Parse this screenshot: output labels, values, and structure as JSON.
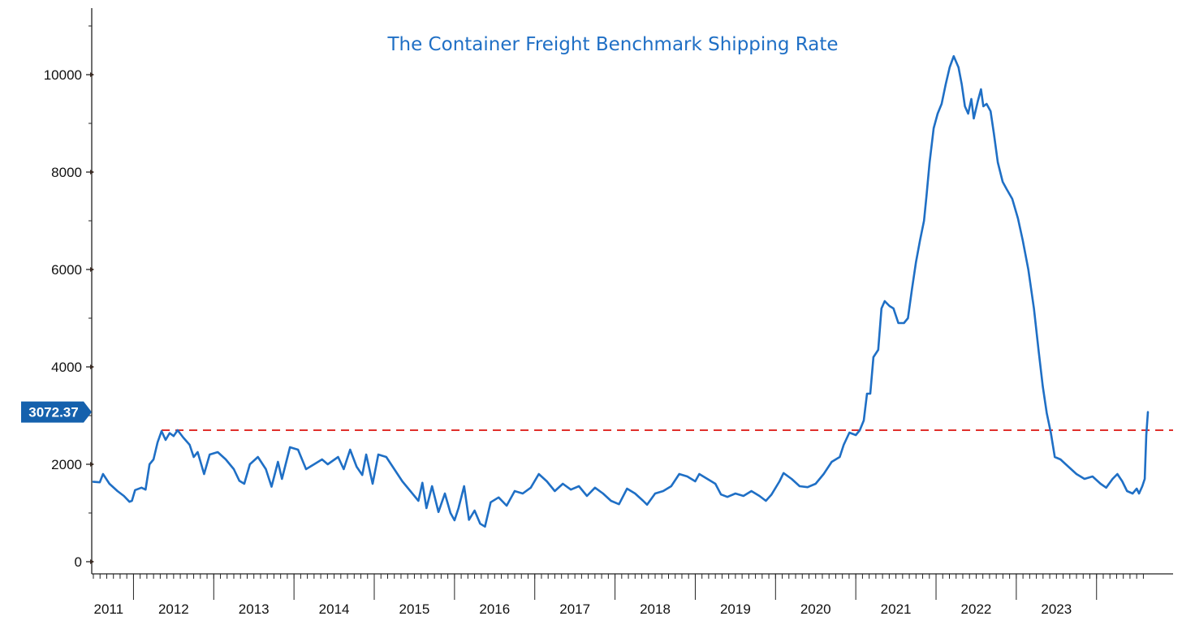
{
  "chart_data": {
    "type": "line",
    "title": "The Container Freight Benchmark Shipping Rate",
    "xlabel": "",
    "ylabel": "",
    "ylim": [
      0,
      11000
    ],
    "xlim": [
      2011.0,
      2024.15
    ],
    "y_ticks": [
      0,
      2000,
      4000,
      6000,
      8000,
      10000
    ],
    "y_tick_labels": [
      "0",
      "2000",
      "4000",
      "6000",
      "8000",
      "10000"
    ],
    "x_tick_labels": [
      "2011",
      "2012",
      "2013",
      "2014",
      "2015",
      "2016",
      "2017",
      "2018",
      "2019",
      "2020",
      "2021",
      "2022",
      "2023"
    ],
    "x_label_centers": [
      2011.19,
      2012.0,
      2013.0,
      2014.0,
      2015.0,
      2016.0,
      2017.0,
      2018.0,
      2019.0,
      2020.0,
      2021.0,
      2022.0,
      2023.0
    ],
    "year_boundaries": [
      2011.5,
      2012.5,
      2013.5,
      2014.5,
      2015.5,
      2016.5,
      2017.5,
      2018.5,
      2019.5,
      2020.5,
      2021.5,
      2022.5,
      2023.5
    ],
    "last_value_label": "3072.37",
    "reference_line": {
      "value": 2700,
      "start_x": 2011.85,
      "style": "dashed"
    },
    "grid": false,
    "colors": {
      "line": "#1f6fc5",
      "title": "#1f6fc5",
      "reference": "#e0302c",
      "badge": "#1561ad",
      "axis": "#222222"
    },
    "series": [
      {
        "name": "",
        "points": [
          [
            2011.0,
            1640
          ],
          [
            2011.08,
            1630
          ],
          [
            2011.12,
            1800
          ],
          [
            2011.2,
            1600
          ],
          [
            2011.3,
            1450
          ],
          [
            2011.38,
            1350
          ],
          [
            2011.45,
            1230
          ],
          [
            2011.48,
            1250
          ],
          [
            2011.52,
            1470
          ],
          [
            2011.6,
            1520
          ],
          [
            2011.65,
            1480
          ],
          [
            2011.7,
            2000
          ],
          [
            2011.75,
            2100
          ],
          [
            2011.8,
            2450
          ],
          [
            2011.85,
            2680
          ],
          [
            2011.9,
            2500
          ],
          [
            2011.95,
            2640
          ],
          [
            2012.0,
            2580
          ],
          [
            2012.05,
            2700
          ],
          [
            2012.12,
            2550
          ],
          [
            2012.2,
            2400
          ],
          [
            2012.25,
            2150
          ],
          [
            2012.3,
            2250
          ],
          [
            2012.38,
            1800
          ],
          [
            2012.45,
            2200
          ],
          [
            2012.55,
            2250
          ],
          [
            2012.65,
            2100
          ],
          [
            2012.75,
            1900
          ],
          [
            2012.82,
            1660
          ],
          [
            2012.88,
            1600
          ],
          [
            2012.95,
            2000
          ],
          [
            2013.05,
            2150
          ],
          [
            2013.15,
            1900
          ],
          [
            2013.22,
            1540
          ],
          [
            2013.3,
            2050
          ],
          [
            2013.35,
            1700
          ],
          [
            2013.45,
            2350
          ],
          [
            2013.55,
            2300
          ],
          [
            2013.65,
            1900
          ],
          [
            2013.75,
            2000
          ],
          [
            2013.85,
            2100
          ],
          [
            2013.92,
            2000
          ],
          [
            2014.05,
            2150
          ],
          [
            2014.12,
            1900
          ],
          [
            2014.2,
            2300
          ],
          [
            2014.28,
            1950
          ],
          [
            2014.35,
            1780
          ],
          [
            2014.4,
            2200
          ],
          [
            2014.48,
            1600
          ],
          [
            2014.55,
            2200
          ],
          [
            2014.65,
            2150
          ],
          [
            2014.75,
            1900
          ],
          [
            2014.85,
            1650
          ],
          [
            2014.95,
            1450
          ],
          [
            2015.05,
            1250
          ],
          [
            2015.1,
            1620
          ],
          [
            2015.15,
            1100
          ],
          [
            2015.22,
            1550
          ],
          [
            2015.3,
            1020
          ],
          [
            2015.38,
            1400
          ],
          [
            2015.45,
            1000
          ],
          [
            2015.5,
            850
          ],
          [
            2015.55,
            1100
          ],
          [
            2015.62,
            1550
          ],
          [
            2015.68,
            860
          ],
          [
            2015.75,
            1050
          ],
          [
            2015.82,
            780
          ],
          [
            2015.88,
            720
          ],
          [
            2015.95,
            1220
          ],
          [
            2016.05,
            1320
          ],
          [
            2016.15,
            1150
          ],
          [
            2016.25,
            1450
          ],
          [
            2016.35,
            1400
          ],
          [
            2016.45,
            1520
          ],
          [
            2016.55,
            1800
          ],
          [
            2016.65,
            1650
          ],
          [
            2016.75,
            1450
          ],
          [
            2016.85,
            1600
          ],
          [
            2016.95,
            1480
          ],
          [
            2017.05,
            1550
          ],
          [
            2017.15,
            1350
          ],
          [
            2017.25,
            1520
          ],
          [
            2017.35,
            1400
          ],
          [
            2017.45,
            1250
          ],
          [
            2017.55,
            1180
          ],
          [
            2017.65,
            1500
          ],
          [
            2017.75,
            1400
          ],
          [
            2017.85,
            1250
          ],
          [
            2017.9,
            1170
          ],
          [
            2018.0,
            1400
          ],
          [
            2018.1,
            1450
          ],
          [
            2018.2,
            1550
          ],
          [
            2018.3,
            1800
          ],
          [
            2018.4,
            1750
          ],
          [
            2018.5,
            1650
          ],
          [
            2018.55,
            1800
          ],
          [
            2018.65,
            1700
          ],
          [
            2018.75,
            1600
          ],
          [
            2018.82,
            1380
          ],
          [
            2018.9,
            1330
          ],
          [
            2019.0,
            1400
          ],
          [
            2019.1,
            1350
          ],
          [
            2019.2,
            1450
          ],
          [
            2019.3,
            1350
          ],
          [
            2019.38,
            1250
          ],
          [
            2019.45,
            1380
          ],
          [
            2019.55,
            1650
          ],
          [
            2019.6,
            1820
          ],
          [
            2019.7,
            1700
          ],
          [
            2019.8,
            1550
          ],
          [
            2019.9,
            1530
          ],
          [
            2020.0,
            1600
          ],
          [
            2020.1,
            1800
          ],
          [
            2020.2,
            2050
          ],
          [
            2020.3,
            2150
          ],
          [
            2020.35,
            2400
          ],
          [
            2020.42,
            2650
          ],
          [
            2020.5,
            2600
          ],
          [
            2020.55,
            2700
          ],
          [
            2020.6,
            2900
          ],
          [
            2020.64,
            3450
          ],
          [
            2020.68,
            3450
          ],
          [
            2020.72,
            4200
          ],
          [
            2020.78,
            4350
          ],
          [
            2020.82,
            5200
          ],
          [
            2020.86,
            5350
          ],
          [
            2020.92,
            5250
          ],
          [
            2020.97,
            5200
          ],
          [
            2021.03,
            4900
          ],
          [
            2021.1,
            4900
          ],
          [
            2021.15,
            5000
          ],
          [
            2021.2,
            5600
          ],
          [
            2021.25,
            6150
          ],
          [
            2021.3,
            6600
          ],
          [
            2021.35,
            7000
          ],
          [
            2021.38,
            7500
          ],
          [
            2021.42,
            8200
          ],
          [
            2021.47,
            8900
          ],
          [
            2021.52,
            9200
          ],
          [
            2021.57,
            9400
          ],
          [
            2021.62,
            9800
          ],
          [
            2021.67,
            10150
          ],
          [
            2021.72,
            10380
          ],
          [
            2021.78,
            10150
          ],
          [
            2021.82,
            9800
          ],
          [
            2021.86,
            9350
          ],
          [
            2021.9,
            9200
          ],
          [
            2021.94,
            9500
          ],
          [
            2021.97,
            9100
          ],
          [
            2022.02,
            9450
          ],
          [
            2022.06,
            9700
          ],
          [
            2022.09,
            9350
          ],
          [
            2022.13,
            9400
          ],
          [
            2022.18,
            9250
          ],
          [
            2022.22,
            8800
          ],
          [
            2022.27,
            8200
          ],
          [
            2022.33,
            7800
          ],
          [
            2022.38,
            7650
          ],
          [
            2022.45,
            7450
          ],
          [
            2022.52,
            7050
          ],
          [
            2022.58,
            6600
          ],
          [
            2022.65,
            6000
          ],
          [
            2022.72,
            5200
          ],
          [
            2022.78,
            4300
          ],
          [
            2022.83,
            3600
          ],
          [
            2022.88,
            3050
          ],
          [
            2022.93,
            2650
          ],
          [
            2022.98,
            2150
          ],
          [
            2023.05,
            2100
          ],
          [
            2023.15,
            1950
          ],
          [
            2023.25,
            1800
          ],
          [
            2023.35,
            1700
          ],
          [
            2023.45,
            1750
          ],
          [
            2023.55,
            1600
          ],
          [
            2023.62,
            1520
          ],
          [
            2023.7,
            1700
          ],
          [
            2023.76,
            1800
          ],
          [
            2023.82,
            1650
          ],
          [
            2023.88,
            1450
          ],
          [
            2023.95,
            1400
          ],
          [
            2024.0,
            1500
          ],
          [
            2024.03,
            1400
          ],
          [
            2024.07,
            1550
          ],
          [
            2024.1,
            1700
          ],
          [
            2024.12,
            2600
          ],
          [
            2024.14,
            3072
          ]
        ]
      }
    ]
  }
}
